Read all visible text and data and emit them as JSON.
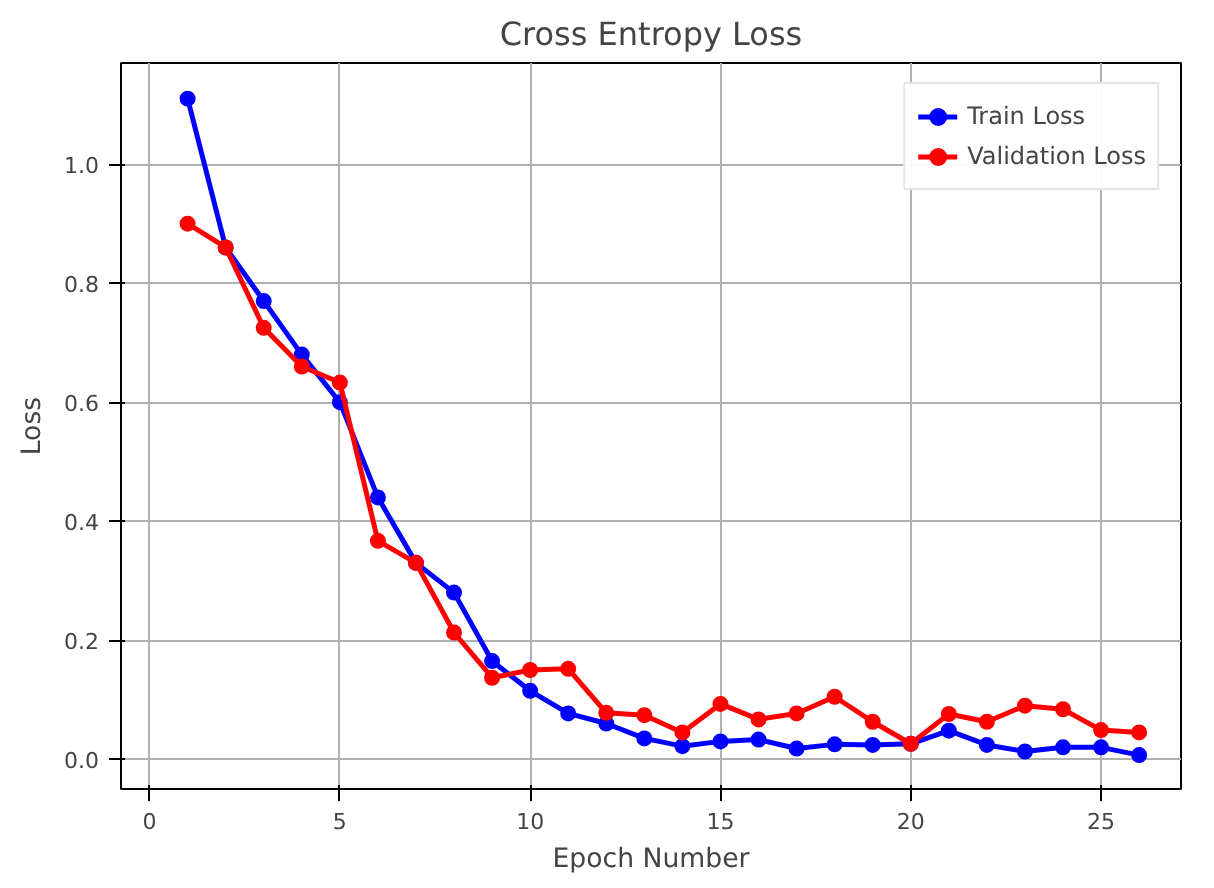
{
  "chart_data": {
    "type": "line",
    "title": "Cross Entropy Loss",
    "xlabel": "Epoch Number",
    "ylabel": "Loss",
    "x": [
      1,
      2,
      3,
      4,
      5,
      6,
      7,
      8,
      9,
      10,
      11,
      12,
      13,
      14,
      15,
      16,
      17,
      18,
      19,
      20,
      21,
      22,
      23,
      24,
      25,
      26
    ],
    "series": [
      {
        "name": "Train Loss",
        "color": "#0000ff",
        "values": [
          1.11,
          0.86,
          0.77,
          0.68,
          0.6,
          0.44,
          0.33,
          0.28,
          0.165,
          0.115,
          0.077,
          0.06,
          0.035,
          0.022,
          0.03,
          0.033,
          0.018,
          0.025,
          0.024,
          0.026,
          0.048,
          0.024,
          0.013,
          0.02,
          0.02,
          0.007
        ]
      },
      {
        "name": "Validation Loss",
        "color": "#ff0000",
        "values": [
          0.9,
          0.86,
          0.725,
          0.66,
          0.633,
          0.367,
          0.33,
          0.213,
          0.137,
          0.15,
          0.152,
          0.078,
          0.074,
          0.045,
          0.093,
          0.067,
          0.077,
          0.105,
          0.063,
          0.026,
          0.076,
          0.063,
          0.09,
          0.084,
          0.049,
          0.045
        ]
      }
    ],
    "xlim": [
      -0.75,
      27.1
    ],
    "ylim": [
      -0.05,
      1.17
    ],
    "xticks": [
      0,
      5,
      10,
      15,
      20,
      25
    ],
    "yticks": [
      {
        "value": 0,
        "label": "0.0"
      },
      {
        "value": 0.2,
        "label": "0.2"
      },
      {
        "value": 0.4,
        "label": "0.4"
      },
      {
        "value": 0.6,
        "label": "0.6"
      },
      {
        "value": 0.8,
        "label": "0.8"
      },
      {
        "value": 1,
        "label": "1.0"
      }
    ],
    "grid": true,
    "legend": "top right",
    "marker": "circle",
    "line_style": "solid"
  }
}
